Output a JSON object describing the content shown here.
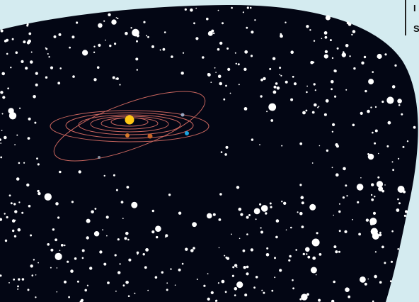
{
  "corner_text": [
    "I",
    "S"
  ]
}
